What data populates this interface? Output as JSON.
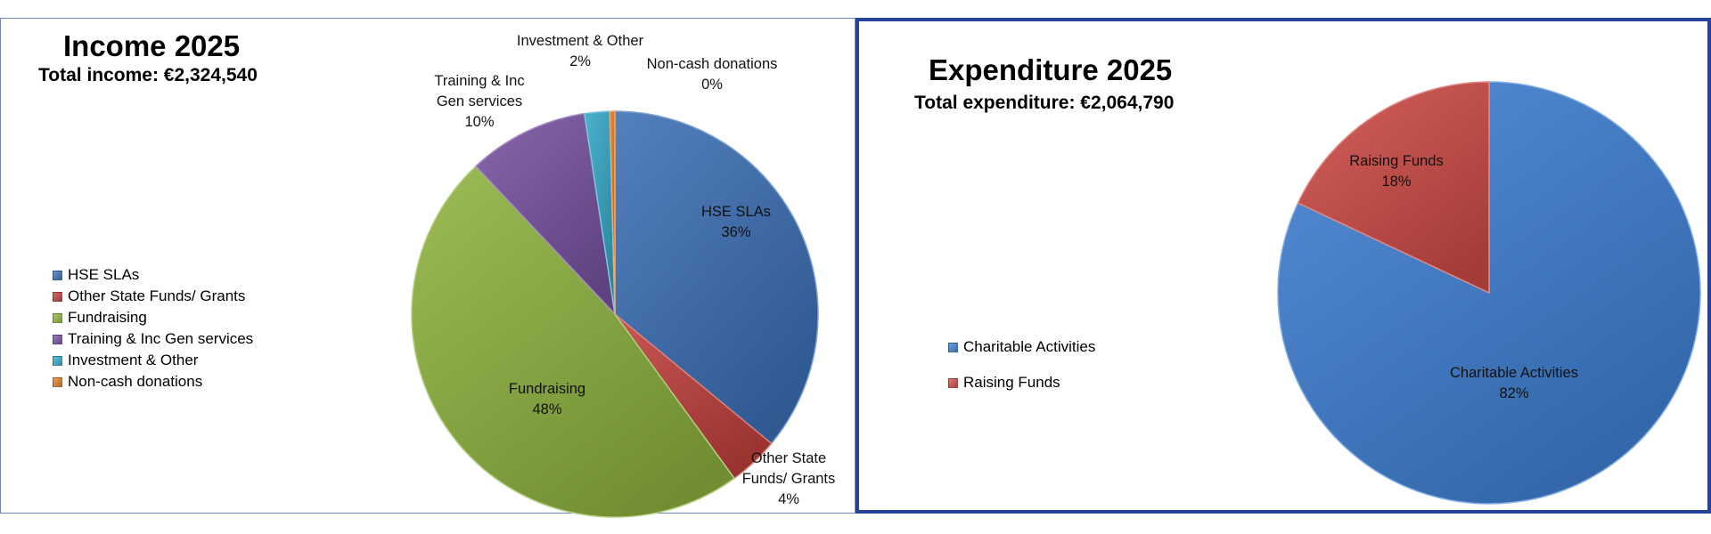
{
  "chart_data": [
    {
      "type": "pie",
      "title": "Income 2025",
      "subtitle": "Total income: €2,324,540",
      "legend_position": "left",
      "slices": [
        {
          "name": "HSE SLAs",
          "label_lines": [
            "HSE SLAs"
          ],
          "pct_label": "36%",
          "value": 36.0,
          "color": "#3b6fb5"
        },
        {
          "name": "Other State Funds/ Grants",
          "label_lines": [
            "Other State",
            "Funds/ Grants"
          ],
          "pct_label": "4%",
          "value": 4.0,
          "color": "#c0403c"
        },
        {
          "name": "Fundraising",
          "label_lines": [
            "Fundraising"
          ],
          "pct_label": "48%",
          "value": 48.0,
          "color": "#8db33f"
        },
        {
          "name": "Training & Inc Gen services",
          "label_lines": [
            "Training & Inc",
            "Gen services"
          ],
          "pct_label": "10%",
          "value": 9.6,
          "color": "#7752a0"
        },
        {
          "name": "Investment & Other",
          "label_lines": [
            "Investment & Other"
          ],
          "pct_label": "2%",
          "value": 2.0,
          "color": "#34a8c6"
        },
        {
          "name": "Non-cash donations",
          "label_lines": [
            "Non-cash donations"
          ],
          "pct_label": "0%",
          "value": 0.4,
          "color": "#e07b24"
        }
      ]
    },
    {
      "type": "pie",
      "title": "Expenditure 2025",
      "subtitle": "Total expenditure: €2,064,790",
      "legend_position": "left",
      "slices": [
        {
          "name": "Charitable Activities",
          "label_lines": [
            "Charitable Activities"
          ],
          "pct_label": "82%",
          "value": 82.0,
          "color": "#3f7fd3"
        },
        {
          "name": "Raising Funds",
          "label_lines": [
            "Raising Funds"
          ],
          "pct_label": "18%",
          "value": 18.0,
          "color": "#cf4b47"
        }
      ]
    }
  ]
}
